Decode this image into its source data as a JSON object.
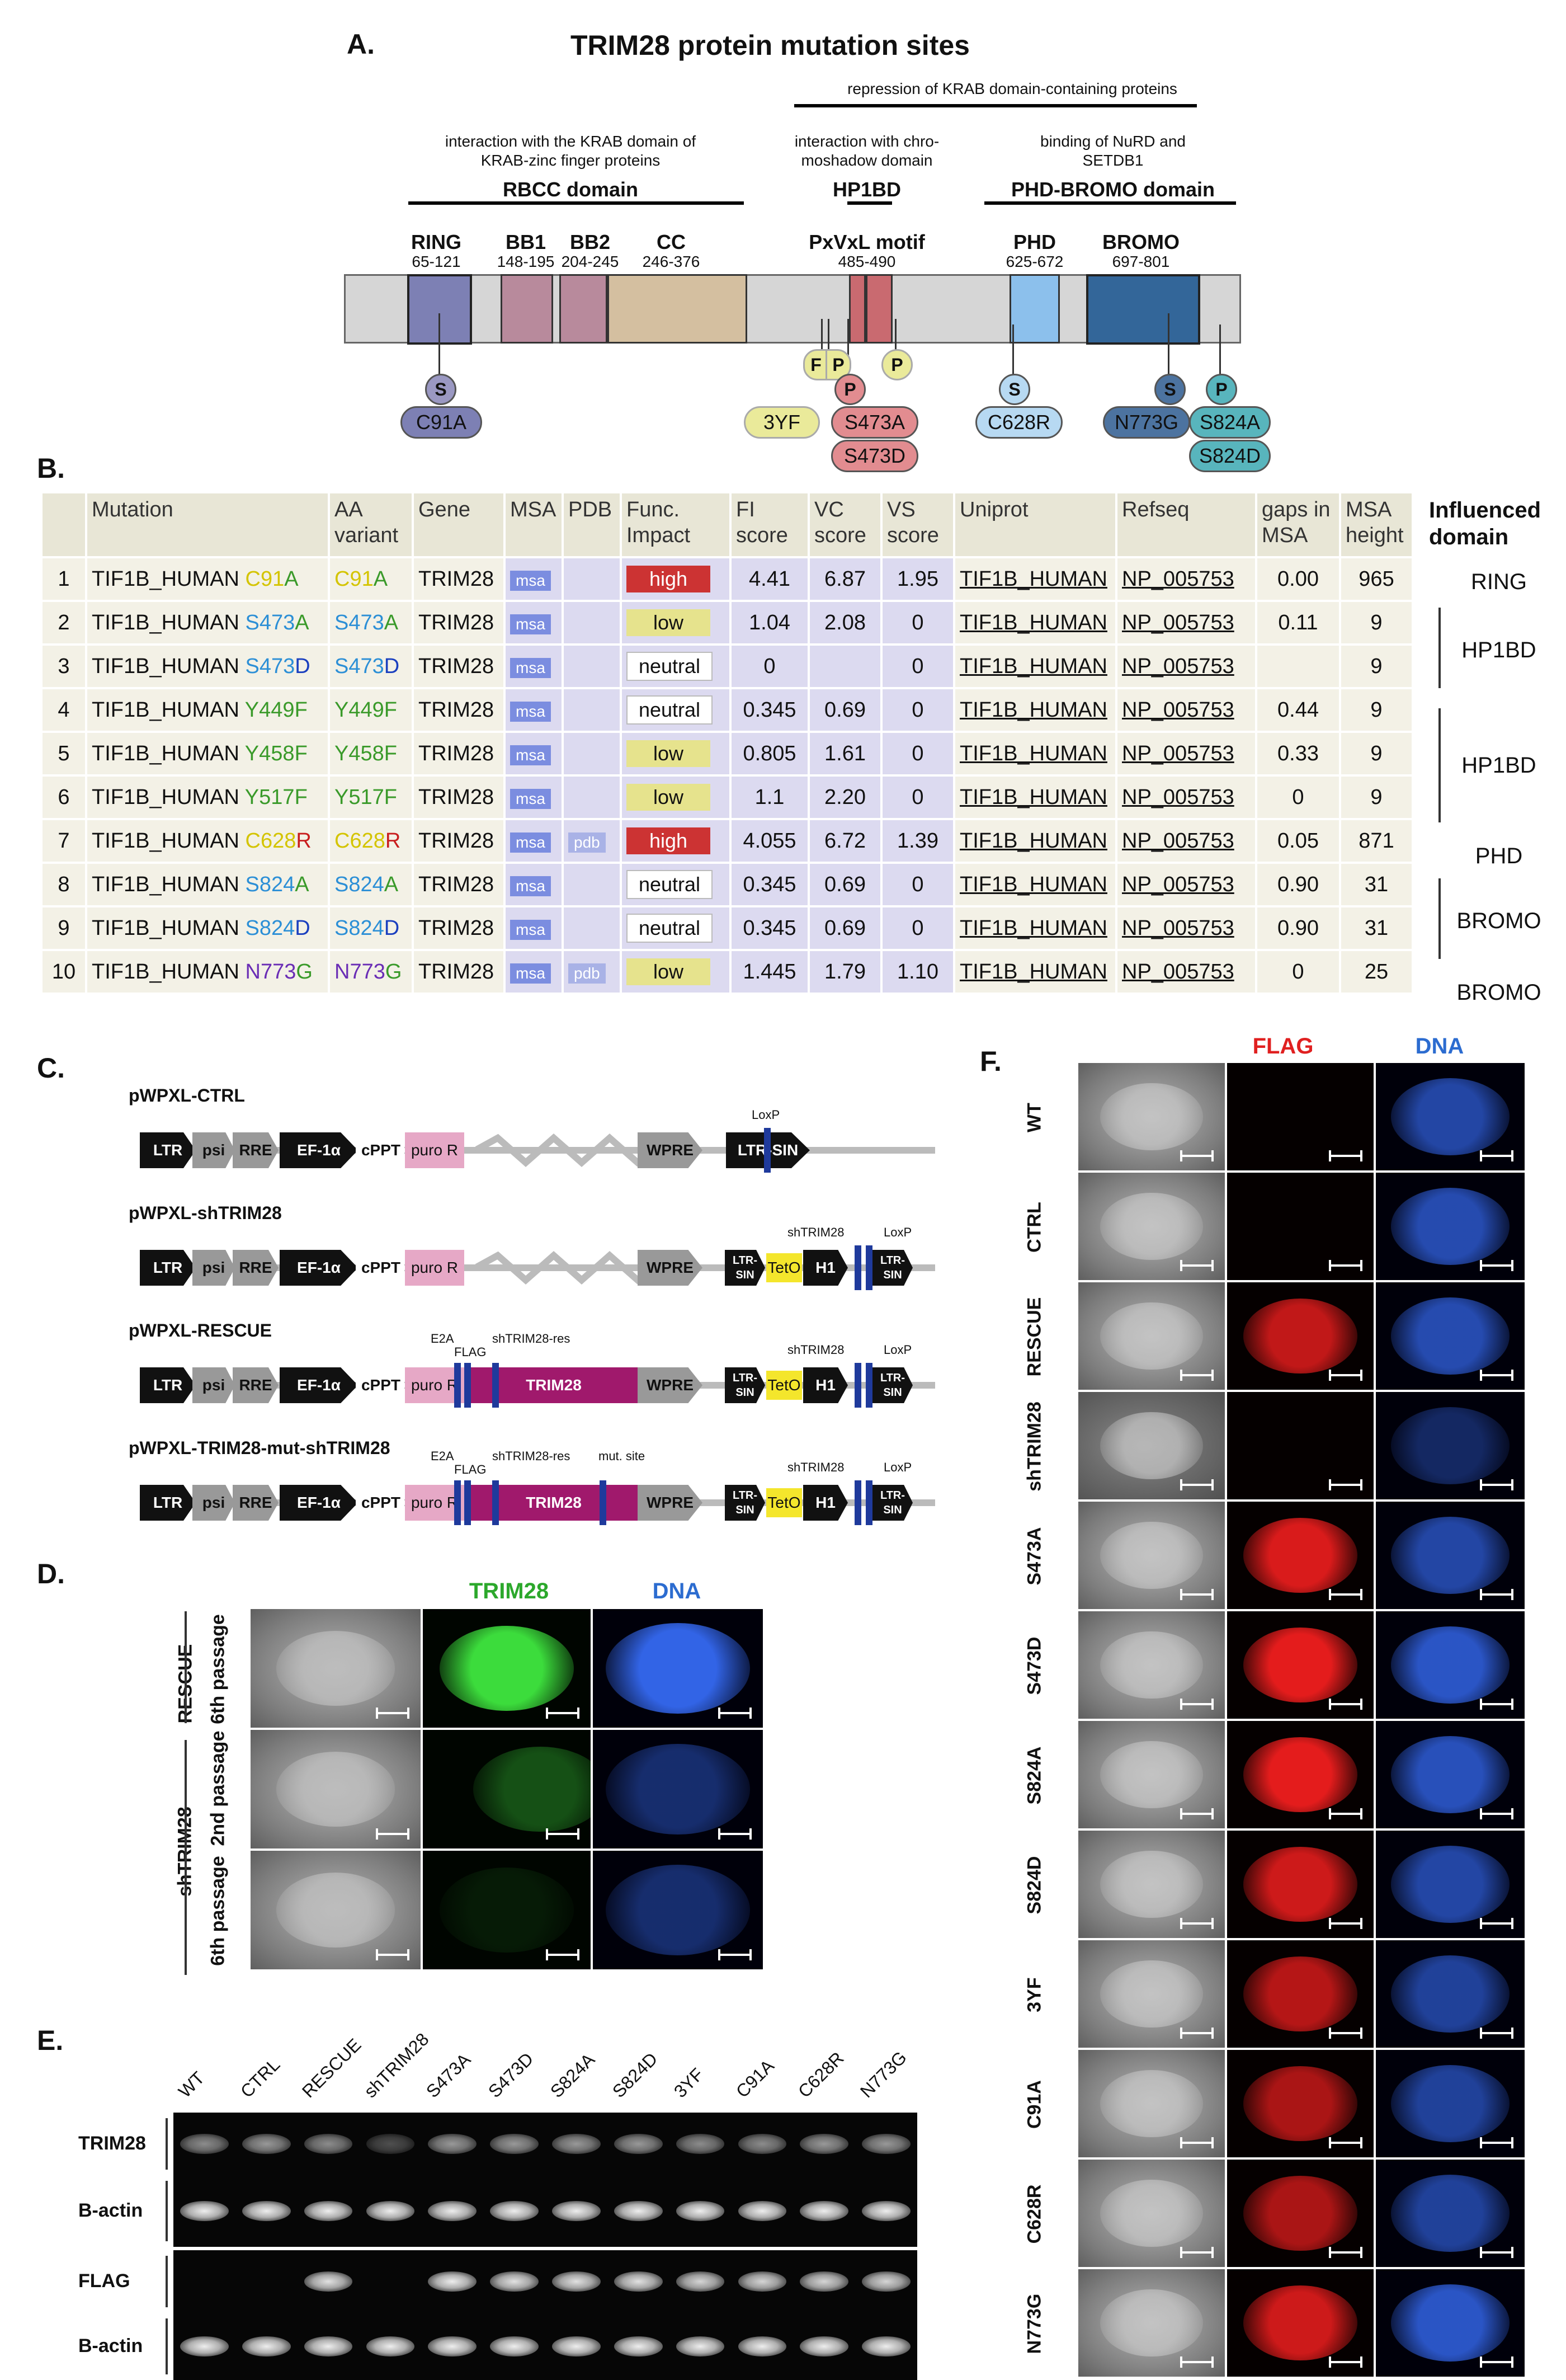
{
  "panelA": {
    "label": "A.",
    "title": "TRIM28 protein mutation sites",
    "repression_note": "repression of KRAB domain-containing proteins",
    "rbcc_note": "interaction with the KRAB domain of KRAB-zinc finger proteins",
    "rbcc_domain": "RBCC domain",
    "hp1_note": "interaction with chro- moshadow domain",
    "hp1_domain": "HP1BD",
    "phd_note": "binding of NuRD and SETDB1",
    "phd_domain": "PHD-BROMO domain",
    "domains": [
      {
        "name": "RING",
        "range": "65-121"
      },
      {
        "name": "BB1",
        "range": "148-195"
      },
      {
        "name": "BB2",
        "range": "204-245"
      },
      {
        "name": "CC",
        "range": "246-376"
      },
      {
        "name": "PxVxL motif",
        "range": "485-490"
      },
      {
        "name": "PHD",
        "range": "625-672"
      },
      {
        "name": "BROMO",
        "range": "697-801"
      }
    ],
    "markers": {
      "s": "S",
      "p": "P",
      "f": "F"
    },
    "mutations": [
      "C91A",
      "3YF",
      "S473A",
      "S473D",
      "C628R",
      "N773G",
      "S824A",
      "S824D"
    ]
  },
  "panelB": {
    "label": "B.",
    "headers": [
      "Mutation",
      "AA variant",
      "Gene",
      "MSA",
      "PDB",
      "Func. Impact",
      "FI score",
      "VC score",
      "VS score",
      "Uniprot",
      "Refseq",
      "gaps in MSA",
      "MSA height"
    ],
    "influenced_header": "Influenced domain",
    "rows": [
      {
        "n": "1",
        "prefix": "TIF1B_HUMAN ",
        "a1": "C",
        "pos": "91",
        "a2": "A",
        "gene": "TRIM28",
        "msa": "msa",
        "pdb": "",
        "impact": "high",
        "fi": "4.41",
        "vc": "6.87",
        "vs": "1.95",
        "uniprot": "TIF1B_HUMAN",
        "refseq": "NP_005753",
        "gaps": "0.00",
        "height": "965"
      },
      {
        "n": "2",
        "prefix": "TIF1B_HUMAN ",
        "a1": "S",
        "pos": "473",
        "a2": "A",
        "gene": "TRIM28",
        "msa": "msa",
        "pdb": "",
        "impact": "low",
        "fi": "1.04",
        "vc": "2.08",
        "vs": "0",
        "uniprot": "TIF1B_HUMAN",
        "refseq": "NP_005753",
        "gaps": "0.11",
        "height": "9"
      },
      {
        "n": "3",
        "prefix": "TIF1B_HUMAN ",
        "a1": "S",
        "pos": "473",
        "a2": "D",
        "gene": "TRIM28",
        "msa": "msa",
        "pdb": "",
        "impact": "neutral",
        "fi": "0",
        "vc": "",
        "vs": "0",
        "uniprot": "TIF1B_HUMAN",
        "refseq": "NP_005753",
        "gaps": "",
        "height": "9"
      },
      {
        "n": "4",
        "prefix": "TIF1B_HUMAN ",
        "a1": "Y",
        "pos": "449",
        "a2": "F",
        "gene": "TRIM28",
        "msa": "msa",
        "pdb": "",
        "impact": "neutral",
        "fi": "0.345",
        "vc": "0.69",
        "vs": "0",
        "uniprot": "TIF1B_HUMAN",
        "refseq": "NP_005753",
        "gaps": "0.44",
        "height": "9"
      },
      {
        "n": "5",
        "prefix": "TIF1B_HUMAN ",
        "a1": "Y",
        "pos": "458",
        "a2": "F",
        "gene": "TRIM28",
        "msa": "msa",
        "pdb": "",
        "impact": "low",
        "fi": "0.805",
        "vc": "1.61",
        "vs": "0",
        "uniprot": "TIF1B_HUMAN",
        "refseq": "NP_005753",
        "gaps": "0.33",
        "height": "9"
      },
      {
        "n": "6",
        "prefix": "TIF1B_HUMAN ",
        "a1": "Y",
        "pos": "517",
        "a2": "F",
        "gene": "TRIM28",
        "msa": "msa",
        "pdb": "",
        "impact": "low",
        "fi": "1.1",
        "vc": "2.20",
        "vs": "0",
        "uniprot": "TIF1B_HUMAN",
        "refseq": "NP_005753",
        "gaps": "0",
        "height": "9"
      },
      {
        "n": "7",
        "prefix": "TIF1B_HUMAN ",
        "a1": "C",
        "pos": "628",
        "a2": "R",
        "gene": "TRIM28",
        "msa": "msa",
        "pdb": "pdb",
        "impact": "high",
        "fi": "4.055",
        "vc": "6.72",
        "vs": "1.39",
        "uniprot": "TIF1B_HUMAN",
        "refseq": "NP_005753",
        "gaps": "0.05",
        "height": "871"
      },
      {
        "n": "8",
        "prefix": "TIF1B_HUMAN ",
        "a1": "S",
        "pos": "824",
        "a2": "A",
        "gene": "TRIM28",
        "msa": "msa",
        "pdb": "",
        "impact": "neutral",
        "fi": "0.345",
        "vc": "0.69",
        "vs": "0",
        "uniprot": "TIF1B_HUMAN",
        "refseq": "NP_005753",
        "gaps": "0.90",
        "height": "31"
      },
      {
        "n": "9",
        "prefix": "TIF1B_HUMAN ",
        "a1": "S",
        "pos": "824",
        "a2": "D",
        "gene": "TRIM28",
        "msa": "msa",
        "pdb": "",
        "impact": "neutral",
        "fi": "0.345",
        "vc": "0.69",
        "vs": "0",
        "uniprot": "TIF1B_HUMAN",
        "refseq": "NP_005753",
        "gaps": "0.90",
        "height": "31"
      },
      {
        "n": "10",
        "prefix": "TIF1B_HUMAN ",
        "a1": "N",
        "pos": "773",
        "a2": "G",
        "gene": "TRIM28",
        "msa": "msa",
        "pdb": "pdb",
        "impact": "low",
        "fi": "1.445",
        "vc": "1.79",
        "vs": "1.10",
        "uniprot": "TIF1B_HUMAN",
        "refseq": "NP_005753",
        "gaps": "0",
        "height": "25"
      }
    ],
    "influenced": [
      "RING",
      "HP1BD",
      "HP1BD",
      "PHD",
      "BROMO",
      "BROMO"
    ],
    "colors": {
      "C": "#d4c400",
      "S": "#2c8fd6",
      "Y": "#3a9a2a",
      "N": "#6a2db5",
      "A": "#3a9a2a",
      "D": "#1a3fbf",
      "F": "#3a9a2a",
      "R": "#c81e1e",
      "G": "#3a9a2a"
    }
  },
  "panelC": {
    "label": "C.",
    "constructs": [
      "pWPXL-CTRL",
      "pWPXL-shTRIM28",
      "pWPXL-RESCUE",
      "pWPXL-TRIM28-mut-shTRIM28"
    ],
    "elements": {
      "ltr": "LTR",
      "psi": "psi",
      "rre": "RRE",
      "ef": "EF-1α",
      "cppt": "cPPT",
      "puro": "puro R",
      "wpre": "WPRE",
      "ltrsin": "LTR-SIN",
      "ltrsin2": "LTR- SIN",
      "teto": "TetO",
      "h1": "H1",
      "trim": "TRIM28"
    },
    "labels": {
      "loxp": "LoxP",
      "sh": "shTRIM28",
      "e2a": "E2A",
      "flag": "FLAG",
      "shres": "shTRIM28-res",
      "mut": "mut. site"
    }
  },
  "panelD": {
    "label": "D.",
    "col_headers": [
      "TRIM28",
      "DNA"
    ],
    "groups": [
      "RESCUE",
      "shTRIM28"
    ],
    "rows": [
      "6th passage",
      "2nd passage",
      "6th passage"
    ]
  },
  "panelE": {
    "label": "E.",
    "lanes": [
      "WT",
      "CTRL",
      "RESCUE",
      "shTRIM28",
      "S473A",
      "S473D",
      "S824A",
      "S824D",
      "3YF",
      "C91A",
      "C628R",
      "N773G"
    ],
    "blots": [
      "TRIM28",
      "B-actin",
      "FLAG",
      "B-actin"
    ],
    "trim28_intensity": [
      0.55,
      0.6,
      0.55,
      0.3,
      0.6,
      0.6,
      0.6,
      0.6,
      0.55,
      0.55,
      0.6,
      0.6
    ],
    "flag_intensity": [
      0,
      0,
      0.9,
      0,
      0.95,
      0.9,
      0.9,
      0.9,
      0.85,
      0.85,
      0.85,
      0.85
    ]
  },
  "panelF": {
    "label": "F.",
    "col_headers": [
      "FLAG",
      "DNA"
    ],
    "rows": [
      "WT",
      "CTRL",
      "RESCUE",
      "shTRIM28",
      "S473A",
      "S473D",
      "S824A",
      "S824D",
      "3YF",
      "C91A",
      "C628R",
      "N773G"
    ]
  }
}
